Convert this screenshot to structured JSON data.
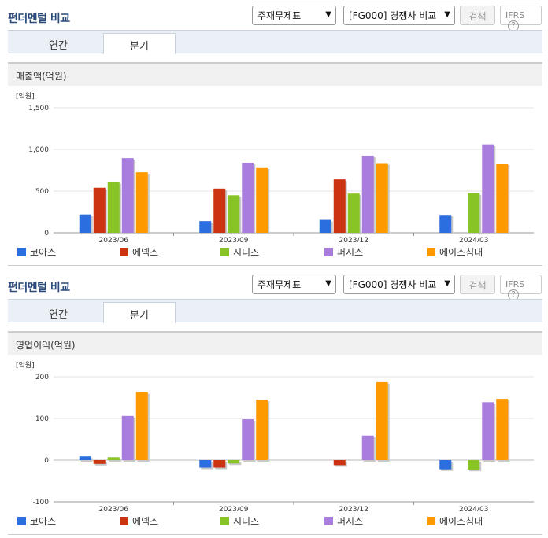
{
  "sections": [
    {
      "title": "펀더멘털 비교",
      "select1": "주재무제표",
      "select2": "[FG000] 경쟁사 비교",
      "search_btn": "검색",
      "ifrs_label": "IFRS",
      "ifrs_help": "?",
      "tabs": [
        "연간",
        "분기"
      ],
      "active_tab": "분기",
      "subtitle": "매출액(억원)"
    },
    {
      "title": "펀더멘털 비교",
      "select1": "주재무제표",
      "select2": "[FG000] 경쟁사 비교",
      "search_btn": "검색",
      "ifrs_label": "IFRS",
      "ifrs_help": "?",
      "tabs": [
        "연간",
        "분기"
      ],
      "active_tab": "분기",
      "subtitle": "영업이익(억원)"
    }
  ],
  "colors": [
    "#2a6ee0",
    "#cc3311",
    "#88c425",
    "#a97ddd",
    "#ff9900"
  ],
  "chart_data": [
    {
      "type": "bar",
      "unit_label": "[억원]",
      "categories": [
        "2023/06",
        "2023/09",
        "2023/12",
        "2024/03"
      ],
      "ylim": [
        0,
        1500
      ],
      "yticks": [
        0,
        500,
        1000,
        1500
      ],
      "ytick_labels": [
        "0",
        "500",
        "1,000",
        "1,500"
      ],
      "series": [
        {
          "name": "코아스",
          "values": [
            220,
            140,
            155,
            215
          ]
        },
        {
          "name": "에넥스",
          "values": [
            540,
            530,
            640,
            null
          ]
        },
        {
          "name": "시디즈",
          "values": [
            605,
            450,
            470,
            475
          ]
        },
        {
          "name": "퍼시스",
          "values": [
            895,
            840,
            925,
            1060
          ]
        },
        {
          "name": "에이스침대",
          "values": [
            725,
            785,
            835,
            830
          ]
        }
      ]
    },
    {
      "type": "bar",
      "unit_label": "[억원]",
      "categories": [
        "2023/06",
        "2023/09",
        "2023/12",
        "2024/03"
      ],
      "ylim": [
        -100,
        200
      ],
      "yticks": [
        -100,
        0,
        100,
        200
      ],
      "ytick_labels": [
        "-100",
        "0",
        "100",
        "200"
      ],
      "series": [
        {
          "name": "코아스",
          "values": [
            9,
            -18,
            null,
            -22
          ]
        },
        {
          "name": "에넥스",
          "values": [
            -9,
            -18,
            -12,
            null
          ]
        },
        {
          "name": "시디즈",
          "values": [
            7,
            -8,
            null,
            -23
          ]
        },
        {
          "name": "퍼시스",
          "values": [
            106,
            98,
            59,
            139
          ]
        },
        {
          "name": "에이스침대",
          "values": [
            163,
            145,
            187,
            147
          ]
        }
      ]
    }
  ]
}
